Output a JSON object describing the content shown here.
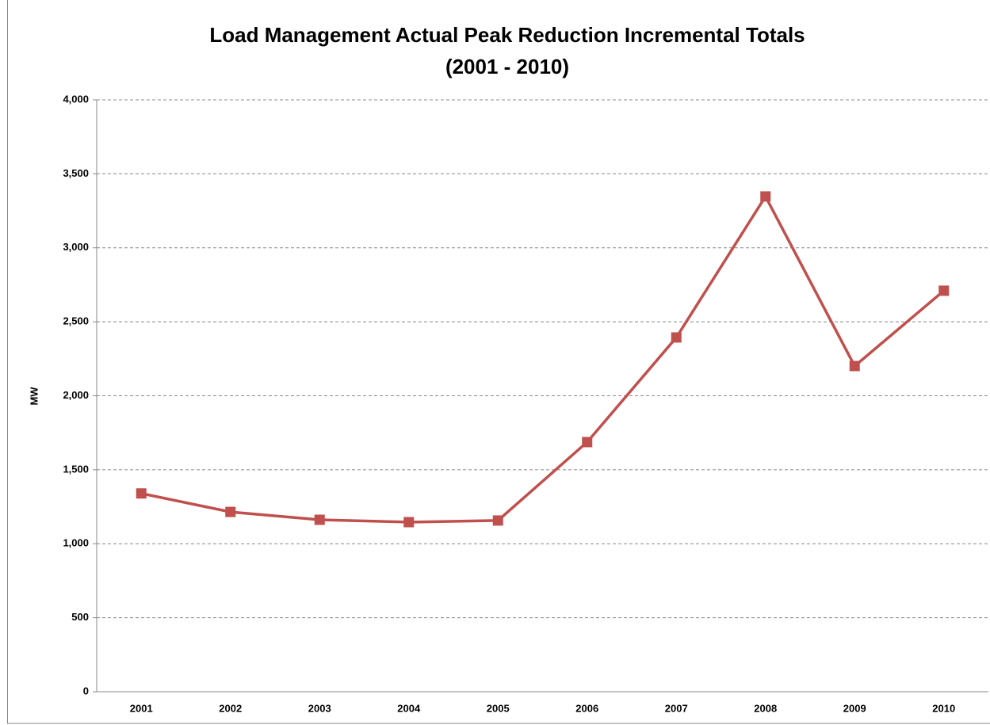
{
  "chart_data": {
    "type": "line",
    "title": [
      "Load Management Actual Peak Reduction Incremental Totals",
      "(2001 - 2010)"
    ],
    "y_label": "MW",
    "categories": [
      "2001",
      "2002",
      "2003",
      "2004",
      "2005",
      "2006",
      "2007",
      "2008",
      "2009",
      "2010"
    ],
    "series": [
      {
        "name": "Actual Peak Reduction",
        "color": "#c0504d",
        "values": [
          1340,
          1215,
          1162,
          1146,
          1157,
          1687,
          2394,
          3347,
          2201,
          2710
        ]
      }
    ],
    "ylim": [
      0,
      4000
    ],
    "yticks": [
      0,
      500,
      {
        "value": 1000,
        "label": "1,000"
      },
      {
        "value": 1500,
        "label": "1,500"
      },
      {
        "value": 2000,
        "label": "2,000"
      },
      {
        "value": 2500,
        "label": "2,500"
      },
      {
        "value": 3000,
        "label": "3,000"
      },
      {
        "value": 3500,
        "label": "3,500"
      },
      {
        "value": 4000,
        "label": "4,000"
      }
    ],
    "grid": true
  }
}
